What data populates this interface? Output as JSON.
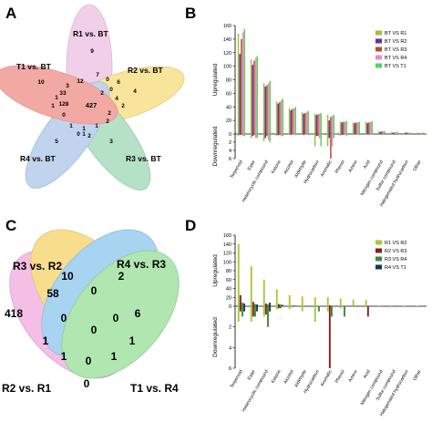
{
  "panels": {
    "A": {
      "letter": "A"
    },
    "B": {
      "letter": "B"
    },
    "C": {
      "letter": "C"
    },
    "D": {
      "letter": "D"
    }
  },
  "venn_a": {
    "sets": [
      "R1 vs. BT",
      "R2 vs. BT",
      "R3 vs. BT",
      "R4 vs. BT",
      "T1 vs. BT"
    ],
    "set_colors": [
      "#e7a8d6",
      "#f3d04a",
      "#79c99a",
      "#8fb2e0",
      "#e9645a"
    ],
    "regions": [
      "9",
      "4",
      "3",
      "5",
      "10",
      "427",
      "128",
      "33",
      "12",
      "7",
      "6",
      "4",
      "0",
      "2",
      "2",
      "2",
      "1",
      "1",
      "1",
      "0",
      "0",
      "1",
      "2",
      "1",
      "1",
      "3",
      "0",
      "2"
    ]
  },
  "venn_c": {
    "sets": [
      "R3 vs. R2",
      "R4 vs. R3",
      "T1 vs. R4",
      "R2 vs. R1"
    ],
    "set_colors": [
      "#f4c842",
      "#6fb9e8",
      "#7dd67d",
      "#ef93d6"
    ],
    "regions": [
      "418",
      "58",
      "10",
      "2",
      "6",
      "0",
      "0",
      "0",
      "0",
      "1",
      "1",
      "1",
      "1",
      "0",
      "0"
    ]
  },
  "chart_data": [
    {
      "type": "bar",
      "panel": "B",
      "ylabel_top": "Upregulated",
      "ylabel_bottom": "Downregulated",
      "ylim_top": [
        0,
        160
      ],
      "ylim_bottom": [
        0,
        6
      ],
      "yticks_top": [
        "0",
        "20",
        "40",
        "60",
        "80",
        "100",
        "120",
        "140",
        "160"
      ],
      "yticks_bottom": [
        "0",
        "2",
        "4",
        "6"
      ],
      "categories": [
        "Terpenoid",
        "Ester",
        "Heterocyclic compound",
        "Ketone",
        "Alcohol",
        "Aldehyde",
        "Hydrocarbon",
        "Aromatic",
        "Phenol",
        "Amine",
        "Acid",
        "Nitrogen compound",
        "Sulfur compound",
        "Halogenated hydrocarbon",
        "Other"
      ],
      "series": [
        {
          "name": "BT VS R1",
          "color": "#9bc23b",
          "up": [
            148,
            110,
            75,
            48,
            38,
            32,
            30,
            28,
            18,
            17,
            18,
            4,
            3,
            2,
            2
          ],
          "down": [
            0.5,
            1,
            1.8,
            0.5,
            0.2,
            0.2,
            3,
            3,
            0.5,
            0.3,
            0,
            0,
            0,
            0,
            0
          ]
        },
        {
          "name": "BT VS R2",
          "color": "#6a2d96",
          "up": [
            118,
            102,
            70,
            45,
            35,
            30,
            28,
            20,
            17,
            16,
            16,
            3,
            2,
            2,
            1
          ],
          "down": [
            0.2,
            0.5,
            1,
            0.3,
            0.2,
            0.2,
            0.5,
            1,
            0.2,
            0,
            0,
            0,
            0,
            0,
            0
          ]
        },
        {
          "name": "BT VS R3",
          "color": "#b0502d",
          "up": [
            140,
            108,
            72,
            47,
            37,
            31,
            29,
            25,
            18,
            17,
            17,
            4,
            2,
            2,
            1
          ],
          "down": [
            0.2,
            0.3,
            0.5,
            0.2,
            0.1,
            0.1,
            0.5,
            6,
            0.2,
            0,
            0,
            0,
            0,
            0,
            0
          ]
        },
        {
          "name": "BT VS R4",
          "color": "#e58fc7",
          "up": [
            150,
            112,
            75,
            50,
            38,
            32,
            30,
            27,
            18,
            17,
            18,
            4,
            3,
            2,
            2
          ],
          "down": [
            0.5,
            1,
            1.5,
            0.5,
            0.2,
            0.2,
            1,
            3,
            0.2,
            0.2,
            0,
            0,
            0,
            0,
            0
          ]
        },
        {
          "name": "BT VS T1",
          "color": "#5cd15c",
          "up": [
            155,
            115,
            78,
            52,
            40,
            34,
            31,
            28,
            19,
            18,
            19,
            4,
            3,
            2,
            2
          ],
          "down": [
            0.5,
            1,
            2,
            0.5,
            0.3,
            0.3,
            3,
            1,
            0.5,
            0.3,
            0,
            0,
            0,
            0,
            0
          ]
        }
      ]
    },
    {
      "type": "bar",
      "panel": "D",
      "ylabel_top": "Upregulated",
      "ylabel_bottom": "Downregulated",
      "ylim_top": [
        0,
        160
      ],
      "ylim_bottom": [
        0,
        6
      ],
      "yticks_top": [
        "0",
        "20",
        "40",
        "60",
        "80",
        "100",
        "120",
        "140",
        "160"
      ],
      "yticks_bottom": [
        "0",
        "2",
        "4",
        "6"
      ],
      "categories": [
        "Terpenoid",
        "Ester",
        "Heterocyclic compound",
        "Ketone",
        "Alcohol",
        "Aldehyde",
        "Hydrocarbon",
        "Aromatic",
        "Phenol",
        "Amine",
        "Acid",
        "Nitrogen compound",
        "Sulfur compound",
        "Halogenated hydrocarbon",
        "Other"
      ],
      "series": [
        {
          "name": "R1 VS R2",
          "color": "#a8c83a",
          "up": [
            140,
            90,
            60,
            38,
            25,
            22,
            20,
            20,
            17,
            15,
            14,
            1,
            1,
            1,
            1
          ],
          "down": [
            1.5,
            1.5,
            1,
            0.3,
            0.3,
            0.5,
            1.5,
            0.5,
            0.2,
            0,
            0,
            0,
            0,
            0,
            0
          ]
        },
        {
          "name": "R2 VS R3",
          "color": "#8b1c1c",
          "up": [
            25,
            10,
            6,
            5,
            1,
            0,
            0,
            2,
            0,
            1,
            0,
            0,
            0,
            0,
            0
          ],
          "down": [
            0.5,
            1,
            0.8,
            0.2,
            0,
            0,
            0,
            6,
            0,
            0,
            1,
            0,
            0,
            0,
            0
          ]
        },
        {
          "name": "R3 VS R4",
          "color": "#3a8a3a",
          "up": [
            8,
            5,
            4,
            4,
            2,
            0,
            1,
            0,
            0,
            0,
            0,
            0,
            0,
            0,
            0
          ],
          "down": [
            1,
            1,
            2,
            0.2,
            0,
            0,
            0.5,
            1,
            1,
            0,
            0,
            0,
            0,
            0,
            0
          ]
        },
        {
          "name": "R4 VS T1",
          "color": "#173a4c",
          "up": [
            6,
            4,
            8,
            3,
            1,
            1,
            0,
            0,
            0,
            0,
            0,
            0,
            0,
            0,
            0
          ],
          "down": [
            0.5,
            0.5,
            0.5,
            0,
            0,
            0,
            0,
            0,
            0,
            0,
            0,
            0,
            0,
            0,
            0
          ]
        }
      ]
    }
  ]
}
